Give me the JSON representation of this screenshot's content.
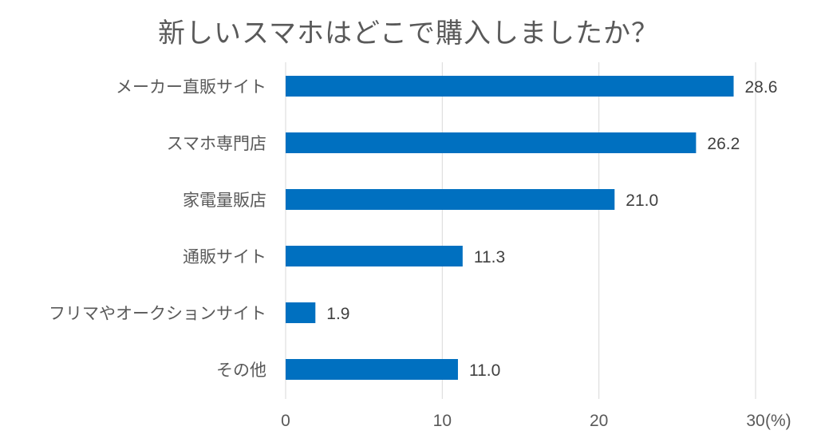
{
  "chart_data": {
    "type": "bar",
    "orientation": "horizontal",
    "title": "新しいスマホはどこで購入しましたか？",
    "categories": [
      "メーカー直販サイト",
      "スマホ専門店",
      "家電量販店",
      "通販サイト",
      "フリマやオークションサイト",
      "その他"
    ],
    "values": [
      28.6,
      26.2,
      21.0,
      11.3,
      1.9,
      11.0
    ],
    "value_labels": [
      "28.6",
      "26.2",
      "21.0",
      "11.3",
      "1.9",
      "11.0"
    ],
    "xlim": [
      0,
      30
    ],
    "x_ticks": [
      0,
      10,
      20,
      30
    ],
    "x_tick_labels": [
      "0",
      "10",
      "20",
      "30"
    ],
    "x_unit": "(%)",
    "grid": "vertical",
    "legend": "none",
    "colors": {
      "bar": "#0070C0",
      "grid": "#D9D9D9",
      "text": "#595959"
    }
  }
}
